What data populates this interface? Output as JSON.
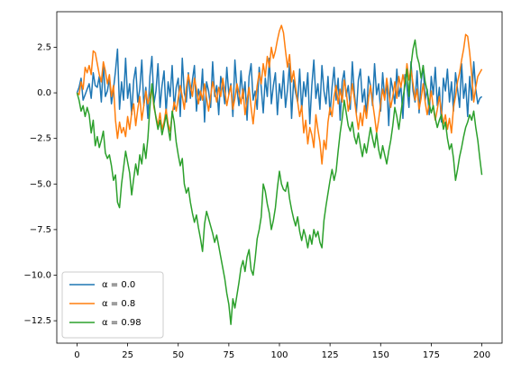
{
  "chart_data": {
    "type": "line",
    "x": [
      0,
      1,
      2,
      3,
      4,
      5,
      6,
      7,
      8,
      9,
      10,
      11,
      12,
      13,
      14,
      15,
      16,
      17,
      18,
      19,
      20,
      21,
      22,
      23,
      24,
      25,
      26,
      27,
      28,
      29,
      30,
      31,
      32,
      33,
      34,
      35,
      36,
      37,
      38,
      39,
      40,
      41,
      42,
      43,
      44,
      45,
      46,
      47,
      48,
      49,
      50,
      51,
      52,
      53,
      54,
      55,
      56,
      57,
      58,
      59,
      60,
      61,
      62,
      63,
      64,
      65,
      66,
      67,
      68,
      69,
      70,
      71,
      72,
      73,
      74,
      75,
      76,
      77,
      78,
      79,
      80,
      81,
      82,
      83,
      84,
      85,
      86,
      87,
      88,
      89,
      90,
      91,
      92,
      93,
      94,
      95,
      96,
      97,
      98,
      99,
      100,
      101,
      102,
      103,
      104,
      105,
      106,
      107,
      108,
      109,
      110,
      111,
      112,
      113,
      114,
      115,
      116,
      117,
      118,
      119,
      120,
      121,
      122,
      123,
      124,
      125,
      126,
      127,
      128,
      129,
      130,
      131,
      132,
      133,
      134,
      135,
      136,
      137,
      138,
      139,
      140,
      141,
      142,
      143,
      144,
      145,
      146,
      147,
      148,
      149,
      150,
      151,
      152,
      153,
      154,
      155,
      156,
      157,
      158,
      159,
      160,
      161,
      162,
      163,
      164,
      165,
      166,
      167,
      168,
      169,
      170,
      171,
      172,
      173,
      174,
      175,
      176,
      177,
      178,
      179,
      180,
      181,
      182,
      183,
      184,
      185,
      186,
      187,
      188,
      189,
      190,
      191,
      192,
      193,
      194,
      195,
      196,
      197,
      198,
      199,
      200
    ],
    "series": [
      {
        "name": "α = 0.0",
        "color": "#1f77b4",
        "values": [
          0.0,
          0.3,
          0.8,
          -0.4,
          -0.1,
          0.2,
          0.5,
          -0.3,
          1.1,
          0.4,
          0.3,
          0.9,
          -0.5,
          1.6,
          -0.2,
          0.1,
          0.8,
          -0.6,
          0.2,
          1.2,
          2.4,
          -0.9,
          0.6,
          -0.4,
          1.9,
          -0.3,
          0.5,
          -1.2,
          0.7,
          1.4,
          -0.5,
          0.2,
          1.8,
          -0.7,
          0.3,
          -1.4,
          0.9,
          2.0,
          -0.6,
          0.1,
          1.6,
          -0.8,
          0.4,
          1.2,
          -1.1,
          0.6,
          -0.2,
          1.5,
          -0.9,
          0.3,
          0.8,
          -1.3,
          1.9,
          0.0,
          -0.5,
          1.1,
          -0.3,
          0.7,
          1.5,
          -1.0,
          0.2,
          -0.4,
          1.3,
          -1.6,
          0.6,
          0.1,
          -0.8,
          1.7,
          -0.2,
          0.4,
          -1.2,
          0.9,
          0.3,
          -0.6,
          1.4,
          -0.1,
          0.5,
          -1.3,
          1.8,
          0.2,
          -0.7,
          1.2,
          -0.3,
          0.6,
          -1.5,
          0.9,
          1.6,
          -0.4,
          0.1,
          -0.9,
          1.4,
          0.3,
          -1.1,
          0.8,
          -0.2,
          1.9,
          -0.6,
          0.4,
          1.1,
          -1.2,
          0.5,
          -0.3,
          1.2,
          -0.8,
          0.2,
          1.6,
          -1.4,
          0.7,
          0.0,
          -0.5,
          1.3,
          -1.0,
          0.6,
          -0.2,
          1.1,
          -1.7,
          0.4,
          1.8,
          -0.3,
          0.5,
          -0.9,
          1.5,
          0.1,
          -0.6,
          0.9,
          -1.2,
          0.3,
          1.4,
          -0.4,
          0.8,
          -1.5,
          0.6,
          1.2,
          -0.2,
          0.4,
          -0.9,
          1.7,
          0.0,
          -1.1,
          0.7,
          1.3,
          -0.5,
          0.2,
          -1.3,
          0.9,
          0.4,
          -0.7,
          1.6,
          -0.1,
          0.5,
          -1.0,
          1.1,
          -0.3,
          0.6,
          -1.8,
          0.8,
          0.2,
          -0.6,
          1.3,
          -0.2,
          0.4,
          -1.4,
          1.0,
          0.3,
          -0.8,
          1.7,
          0.1,
          -0.5,
          1.2,
          -1.1,
          0.6,
          1.5,
          -0.4,
          0.2,
          -1.2,
          0.9,
          -0.1,
          1.4,
          -0.7,
          0.3,
          -1.6,
          0.8,
          0.1,
          1.3,
          -0.5,
          0.6,
          -1.0,
          1.1,
          0.2,
          -0.8,
          1.6,
          -0.3,
          0.5,
          -1.3,
          0.9,
          -0.4,
          1.7,
          0.2,
          -0.6,
          -0.3,
          -0.2
        ]
      },
      {
        "name": "α = 0.8",
        "color": "#ff7f0e",
        "values": [
          0.0,
          -0.1,
          0.6,
          0.2,
          1.4,
          1.1,
          1.5,
          1.0,
          2.3,
          2.2,
          1.6,
          1.0,
          0.6,
          1.7,
          1.2,
          0.5,
          1.0,
          -0.2,
          0.4,
          -1.5,
          -2.5,
          -1.6,
          -2.2,
          -1.9,
          -2.4,
          -1.3,
          -2.0,
          -1.1,
          -0.6,
          -1.8,
          -0.9,
          -0.2,
          -1.5,
          -0.7,
          0.1,
          -0.6,
          -0.2,
          0.3,
          -0.8,
          -1.3,
          -1.8,
          -1.1,
          -2.0,
          -1.6,
          -0.9,
          -1.7,
          -2.1,
          -1.2,
          -0.5,
          -1.0,
          -0.3,
          0.4,
          -0.2,
          -0.9,
          0.3,
          1.0,
          0.4,
          -0.2,
          0.8,
          0.2,
          -0.6,
          0.1,
          -0.4,
          0.5,
          -0.3,
          -1.0,
          -0.2,
          0.6,
          0.1,
          -0.5,
          0.3,
          -0.2,
          0.8,
          0.1,
          -0.7,
          -0.1,
          0.4,
          -0.9,
          -0.3,
          0.5,
          0.0,
          -0.6,
          0.2,
          -1.2,
          -0.4,
          0.3,
          -0.8,
          -1.7,
          -0.6,
          0.4,
          1.1,
          0.5,
          1.6,
          0.9,
          2.0,
          1.4,
          2.5,
          1.9,
          2.3,
          2.9,
          3.4,
          3.7,
          3.3,
          2.3,
          1.4,
          2.1,
          0.6,
          1.2,
          0.3,
          -0.5,
          -1.3,
          -0.7,
          -2.2,
          -1.5,
          -2.8,
          -1.9,
          -2.3,
          -3.0,
          -1.2,
          -2.0,
          -2.7,
          -3.9,
          -2.6,
          -3.1,
          -1.6,
          -0.8,
          -1.3,
          -0.2,
          0.4,
          -0.6,
          0.2,
          -0.5,
          0.7,
          0.1,
          -1.0,
          -0.4,
          0.5,
          -0.3,
          -1.2,
          -2.0,
          -1.1,
          -1.8,
          -0.7,
          -1.4,
          -0.3,
          0.4,
          -0.5,
          -1.3,
          -2.2,
          -1.5,
          -0.6,
          0.2,
          -0.4,
          0.8,
          0.0,
          -0.8,
          -0.2,
          0.6,
          -0.3,
          0.9,
          0.3,
          1.0,
          0.4,
          1.6,
          0.7,
          1.3,
          0.5,
          -0.4,
          0.2,
          -0.9,
          -0.3,
          0.5,
          -0.5,
          -1.2,
          -0.6,
          0.1,
          -0.8,
          -1.5,
          -0.9,
          -0.2,
          -1.0,
          -1.7,
          -1.2,
          -2.0,
          -1.4,
          -2.2,
          -0.8,
          -0.2,
          0.6,
          1.1,
          1.8,
          2.4,
          3.2,
          3.1,
          2.2,
          1.0,
          -0.5,
          0.3,
          0.9,
          1.1,
          1.3
        ]
      },
      {
        "name": "α = 0.98",
        "color": "#2ca02c",
        "values": [
          0.0,
          -0.4,
          -1.0,
          -0.7,
          -1.3,
          -0.8,
          -1.2,
          -2.2,
          -1.5,
          -2.9,
          -2.4,
          -3.0,
          -2.6,
          -2.1,
          -3.3,
          -3.6,
          -3.4,
          -4.0,
          -4.8,
          -4.5,
          -6.0,
          -6.3,
          -5.0,
          -4.1,
          -3.2,
          -3.8,
          -4.4,
          -5.6,
          -4.7,
          -3.9,
          -4.5,
          -3.4,
          -3.9,
          -2.8,
          -3.6,
          -2.5,
          -0.8,
          0.5,
          -0.6,
          -1.4,
          -2.0,
          -1.5,
          -2.3,
          -1.8,
          -1.2,
          -1.9,
          -2.6,
          -1.0,
          -1.6,
          -2.7,
          -3.4,
          -4.0,
          -3.6,
          -5.0,
          -5.5,
          -5.2,
          -6.0,
          -6.6,
          -7.1,
          -6.7,
          -7.4,
          -8.0,
          -8.7,
          -7.2,
          -6.5,
          -6.9,
          -7.3,
          -7.7,
          -8.2,
          -7.8,
          -8.4,
          -9.0,
          -9.6,
          -10.2,
          -11.0,
          -11.6,
          -12.7,
          -11.3,
          -11.8,
          -11.1,
          -10.4,
          -9.6,
          -9.2,
          -9.8,
          -9.0,
          -8.6,
          -9.7,
          -10.0,
          -9.1,
          -8.0,
          -7.5,
          -6.8,
          -5.0,
          -5.4,
          -6.1,
          -6.6,
          -7.5,
          -7.0,
          -6.3,
          -5.2,
          -4.3,
          -5.0,
          -5.3,
          -5.4,
          -4.9,
          -5.8,
          -6.4,
          -6.9,
          -7.3,
          -6.8,
          -7.6,
          -8.1,
          -7.5,
          -7.9,
          -8.5,
          -7.8,
          -8.3,
          -7.5,
          -7.9,
          -7.6,
          -8.2,
          -8.5,
          -7.0,
          -6.2,
          -5.5,
          -4.8,
          -4.2,
          -4.8,
          -4.3,
          -3.2,
          -2.2,
          -1.4,
          -0.4,
          -1.1,
          -1.8,
          -2.1,
          -1.6,
          -2.4,
          -2.8,
          -2.2,
          -2.9,
          -3.5,
          -2.8,
          -3.3,
          -2.6,
          -1.9,
          -2.5,
          -3.0,
          -2.2,
          -3.1,
          -3.6,
          -2.9,
          -3.4,
          -3.9,
          -3.2,
          -2.6,
          -1.8,
          -0.8,
          -1.3,
          -2.0,
          -1.1,
          -0.3,
          0.4,
          1.3,
          -0.2,
          1.5,
          2.4,
          2.9,
          2.0,
          1.6,
          0.8,
          1.5,
          0.6,
          0.1,
          -0.6,
          -1.1,
          -0.7,
          -1.4,
          -1.9,
          -1.5,
          -1.2,
          -2.0,
          -1.6,
          -2.5,
          -3.1,
          -2.8,
          -3.6,
          -4.8,
          -4.2,
          -3.5,
          -3.0,
          -2.4,
          -1.9,
          -1.6,
          -1.2,
          -1.5,
          -1.0,
          -1.9,
          -2.6,
          -3.6,
          -4.5
        ]
      }
    ],
    "xlim": [
      -10,
      210
    ],
    "xticks": [
      0,
      25,
      50,
      75,
      100,
      125,
      150,
      175,
      200
    ],
    "ylim": [
      -13.73,
      4.45
    ],
    "yticks": [
      2.5,
      {
        "value": 0,
        "label": "0.0"
      },
      {
        "value": -2.5,
        "label": "−2.5"
      },
      {
        "value": -5,
        "label": "−5.0"
      },
      {
        "value": -7.5,
        "label": "−7.5"
      },
      {
        "value": -10,
        "label": "−10.0"
      },
      {
        "value": -12.5,
        "label": "−12.5"
      }
    ],
    "legend": "lower left"
  }
}
